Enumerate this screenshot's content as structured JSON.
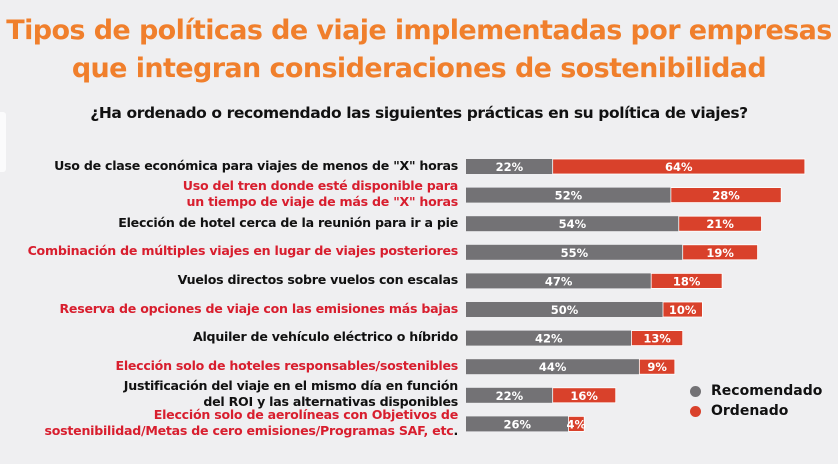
{
  "title_lines": [
    "Tipos de políticas de viaje implementadas por empresas",
    "que integran consideraciones de sostenibilidad"
  ],
  "subtitle": "¿Ha ordenado o recomendado las siguientes prácticas en su política de viajes?",
  "colors": {
    "title": "#f07f2c",
    "recomendado": "#737275",
    "ordenado": "#d9412b",
    "label_dark": "#111111",
    "label_red": "#d81e2e",
    "background": "#efeff1"
  },
  "chart_data": {
    "type": "bar",
    "orientation": "horizontal",
    "stacked": true,
    "title": "Tipos de políticas de viaje implementadas por empresas que integran consideraciones de sostenibilidad",
    "subtitle": "¿Ha ordenado o recomendado las siguientes prácticas en su política de viajes?",
    "xlabel": "",
    "ylabel": "",
    "xlim": [
      0,
      100
    ],
    "grid": false,
    "legend_position": "bottom-right",
    "categories": [
      {
        "lines": [
          "Uso de clase económica para viajes de menos de \"X\" horas"
        ],
        "highlight": false
      },
      {
        "lines": [
          "Uso del tren donde esté disponible para",
          "un tiempo de viaje de más de \"X\" horas"
        ],
        "highlight": true
      },
      {
        "lines": [
          "Elección de hotel cerca de la reunión para ir a pie"
        ],
        "highlight": false
      },
      {
        "lines": [
          "Combinación de múltiples viajes en lugar de viajes posteriores"
        ],
        "highlight": true
      },
      {
        "lines": [
          "Vuelos directos sobre vuelos con escalas"
        ],
        "highlight": false
      },
      {
        "lines": [
          "Reserva de opciones de viaje con las emisiones más bajas"
        ],
        "highlight": true
      },
      {
        "lines": [
          "Alquiler de vehículo eléctrico o híbrido"
        ],
        "highlight": false
      },
      {
        "lines": [
          "Elección solo de hoteles responsables/sostenibles"
        ],
        "highlight": true
      },
      {
        "lines": [
          "Justificación del viaje en el mismo día en función",
          "del ROI y las alternativas disponibles"
        ],
        "highlight": false
      },
      {
        "lines": [
          "Elección solo de aerolíneas con Objetivos de",
          "sostenibilidad/Metas de cero emisiones/Programas SAF, etc."
        ],
        "highlight": true,
        "last_char_dark": true
      }
    ],
    "series": [
      {
        "name": "Recomendado",
        "color": "#737275",
        "values": [
          22,
          52,
          54,
          55,
          47,
          50,
          42,
          44,
          22,
          26
        ]
      },
      {
        "name": "Ordenado",
        "color": "#d9412b",
        "values": [
          64,
          28,
          21,
          19,
          18,
          10,
          13,
          9,
          16,
          4
        ]
      }
    ],
    "value_format": "{v}%"
  },
  "legend": [
    {
      "label": "Recomendado",
      "color": "#737275"
    },
    {
      "label": "Ordenado",
      "color": "#d9412b"
    }
  ]
}
